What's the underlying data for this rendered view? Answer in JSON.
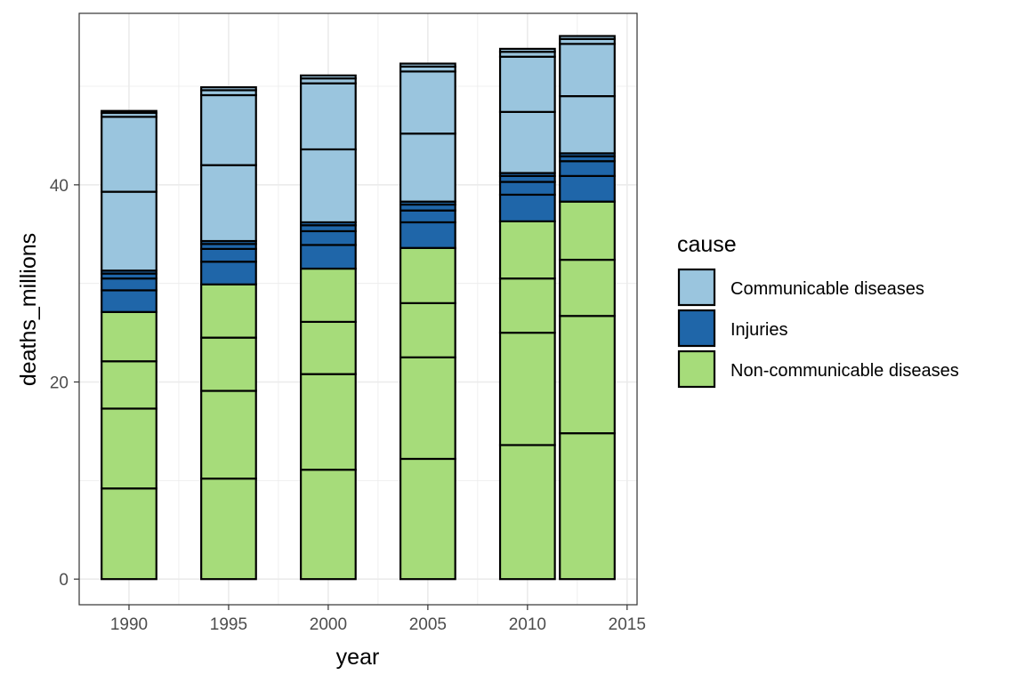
{
  "chart_data": {
    "type": "bar",
    "stacked": true,
    "xlabel": "year",
    "ylabel": "deaths_millions",
    "xlim": [
      1987.5,
      2015.5
    ],
    "ylim": [
      -2.6,
      57.4
    ],
    "x_ticks": [
      1990,
      1995,
      2000,
      2005,
      2010,
      2015
    ],
    "y_ticks": [
      0,
      20,
      40
    ],
    "x_tick_labels": [
      "1990",
      "1995",
      "2000",
      "2005",
      "2010",
      "2015"
    ],
    "y_tick_labels": [
      "0",
      "20",
      "40"
    ],
    "grid": true,
    "bar_width_years": 2.75,
    "legend": {
      "title": "cause",
      "placement": "right",
      "entries": [
        {
          "label": "Communicable diseases",
          "color": "#9ac5de"
        },
        {
          "label": "Injuries",
          "color": "#1f66a9"
        },
        {
          "label": "Non-communicable diseases",
          "color": "#a6dc7a"
        }
      ]
    },
    "bars": [
      {
        "x": 1990,
        "segments": [
          {
            "cause": "Non-communicable diseases",
            "value": 9.2
          },
          {
            "cause": "Non-communicable diseases",
            "value": 8.1
          },
          {
            "cause": "Non-communicable diseases",
            "value": 4.8
          },
          {
            "cause": "Non-communicable diseases",
            "value": 5.0
          },
          {
            "cause": "Injuries",
            "value": 2.2
          },
          {
            "cause": "Injuries",
            "value": 1.2
          },
          {
            "cause": "Injuries",
            "value": 0.5
          },
          {
            "cause": "Injuries",
            "value": 0.3
          },
          {
            "cause": "Communicable diseases",
            "value": 8.0
          },
          {
            "cause": "Communicable diseases",
            "value": 7.6
          },
          {
            "cause": "Communicable diseases",
            "value": 0.4
          },
          {
            "cause": "Communicable diseases",
            "value": 0.2
          }
        ]
      },
      {
        "x": 1995,
        "segments": [
          {
            "cause": "Non-communicable diseases",
            "value": 10.2
          },
          {
            "cause": "Non-communicable diseases",
            "value": 8.9
          },
          {
            "cause": "Non-communicable diseases",
            "value": 5.4
          },
          {
            "cause": "Non-communicable diseases",
            "value": 5.4
          },
          {
            "cause": "Injuries",
            "value": 2.3
          },
          {
            "cause": "Injuries",
            "value": 1.3
          },
          {
            "cause": "Injuries",
            "value": 0.5
          },
          {
            "cause": "Injuries",
            "value": 0.3
          },
          {
            "cause": "Communicable diseases",
            "value": 7.7
          },
          {
            "cause": "Communicable diseases",
            "value": 7.1
          },
          {
            "cause": "Communicable diseases",
            "value": 0.5
          },
          {
            "cause": "Communicable diseases",
            "value": 0.3
          }
        ]
      },
      {
        "x": 2000,
        "segments": [
          {
            "cause": "Non-communicable diseases",
            "value": 11.1
          },
          {
            "cause": "Non-communicable diseases",
            "value": 9.7
          },
          {
            "cause": "Non-communicable diseases",
            "value": 5.3
          },
          {
            "cause": "Non-communicable diseases",
            "value": 5.4
          },
          {
            "cause": "Injuries",
            "value": 2.4
          },
          {
            "cause": "Injuries",
            "value": 1.4
          },
          {
            "cause": "Injuries",
            "value": 0.6
          },
          {
            "cause": "Injuries",
            "value": 0.3
          },
          {
            "cause": "Communicable diseases",
            "value": 7.4
          },
          {
            "cause": "Communicable diseases",
            "value": 6.7
          },
          {
            "cause": "Communicable diseases",
            "value": 0.5
          },
          {
            "cause": "Communicable diseases",
            "value": 0.3
          }
        ]
      },
      {
        "x": 2005,
        "segments": [
          {
            "cause": "Non-communicable diseases",
            "value": 12.2
          },
          {
            "cause": "Non-communicable diseases",
            "value": 10.3
          },
          {
            "cause": "Non-communicable diseases",
            "value": 5.5
          },
          {
            "cause": "Non-communicable diseases",
            "value": 5.6
          },
          {
            "cause": "Injuries",
            "value": 2.6
          },
          {
            "cause": "Injuries",
            "value": 1.2
          },
          {
            "cause": "Injuries",
            "value": 0.6
          },
          {
            "cause": "Injuries",
            "value": 0.3
          },
          {
            "cause": "Communicable diseases",
            "value": 6.9
          },
          {
            "cause": "Communicable diseases",
            "value": 6.3
          },
          {
            "cause": "Communicable diseases",
            "value": 0.5
          },
          {
            "cause": "Communicable diseases",
            "value": 0.3
          }
        ]
      },
      {
        "x": 2010,
        "segments": [
          {
            "cause": "Non-communicable diseases",
            "value": 13.6
          },
          {
            "cause": "Non-communicable diseases",
            "value": 11.4
          },
          {
            "cause": "Non-communicable diseases",
            "value": 5.5
          },
          {
            "cause": "Non-communicable diseases",
            "value": 5.8
          },
          {
            "cause": "Injuries",
            "value": 2.7
          },
          {
            "cause": "Injuries",
            "value": 1.3
          },
          {
            "cause": "Injuries",
            "value": 0.6
          },
          {
            "cause": "Injuries",
            "value": 0.3
          },
          {
            "cause": "Communicable diseases",
            "value": 6.2
          },
          {
            "cause": "Communicable diseases",
            "value": 5.6
          },
          {
            "cause": "Communicable diseases",
            "value": 0.5
          },
          {
            "cause": "Communicable diseases",
            "value": 0.3
          }
        ]
      },
      {
        "x": 2013,
        "segments": [
          {
            "cause": "Non-communicable diseases",
            "value": 14.8
          },
          {
            "cause": "Non-communicable diseases",
            "value": 11.9
          },
          {
            "cause": "Non-communicable diseases",
            "value": 5.7
          },
          {
            "cause": "Non-communicable diseases",
            "value": 5.9
          },
          {
            "cause": "Injuries",
            "value": 2.6
          },
          {
            "cause": "Injuries",
            "value": 1.5
          },
          {
            "cause": "Injuries",
            "value": 0.5
          },
          {
            "cause": "Injuries",
            "value": 0.3
          },
          {
            "cause": "Communicable diseases",
            "value": 5.8
          },
          {
            "cause": "Communicable diseases",
            "value": 5.3
          },
          {
            "cause": "Communicable diseases",
            "value": 0.5
          },
          {
            "cause": "Communicable diseases",
            "value": 0.3
          }
        ]
      }
    ]
  }
}
